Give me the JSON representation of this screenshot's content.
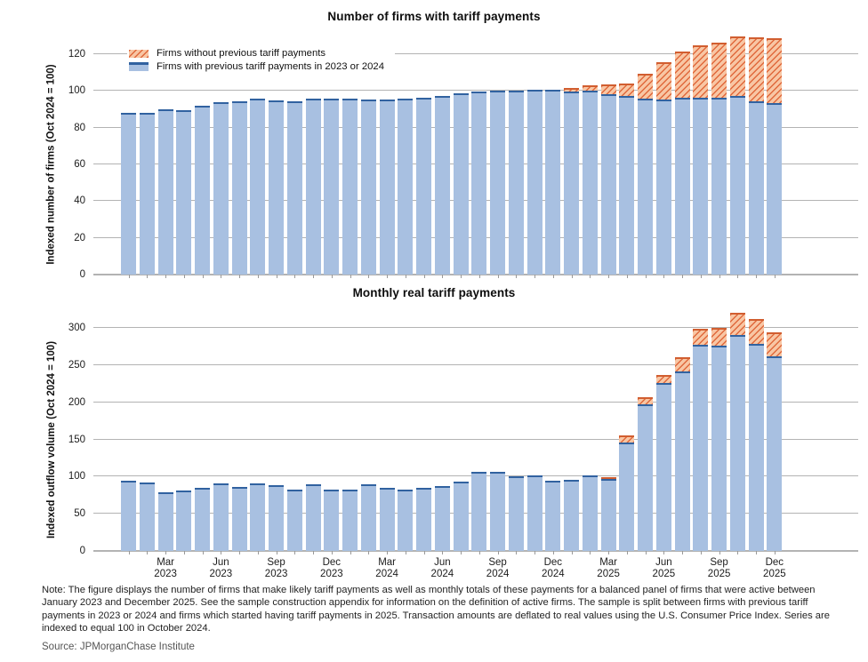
{
  "months": [
    "Jan 2023",
    "Feb 2023",
    "Mar 2023",
    "Apr 2023",
    "May 2023",
    "Jun 2023",
    "Jul 2023",
    "Aug 2023",
    "Sep 2023",
    "Oct 2023",
    "Nov 2023",
    "Dec 2023",
    "Jan 2024",
    "Feb 2024",
    "Mar 2024",
    "Apr 2024",
    "May 2024",
    "Jun 2024",
    "Jul 2024",
    "Aug 2024",
    "Sep 2024",
    "Oct 2024",
    "Nov 2024",
    "Dec 2024",
    "Jan 2025",
    "Feb 2025",
    "Mar 2025",
    "Apr 2025",
    "May 2025",
    "Jun 2025",
    "Jul 2025",
    "Aug 2025",
    "Sep 2025",
    "Oct 2025",
    "Nov 2025",
    "Dec 2025"
  ],
  "x_axis_ticks": [
    {
      "index": 2,
      "month": "Mar",
      "year": "2023"
    },
    {
      "index": 5,
      "month": "Jun",
      "year": "2023"
    },
    {
      "index": 8,
      "month": "Sep",
      "year": "2023"
    },
    {
      "index": 11,
      "month": "Dec",
      "year": "2023"
    },
    {
      "index": 14,
      "month": "Mar",
      "year": "2024"
    },
    {
      "index": 17,
      "month": "Jun",
      "year": "2024"
    },
    {
      "index": 20,
      "month": "Sep",
      "year": "2024"
    },
    {
      "index": 23,
      "month": "Dec",
      "year": "2024"
    },
    {
      "index": 26,
      "month": "Mar",
      "year": "2025"
    },
    {
      "index": 29,
      "month": "Jun",
      "year": "2025"
    },
    {
      "index": 32,
      "month": "Sep",
      "year": "2025"
    },
    {
      "index": 35,
      "month": "Dec",
      "year": "2025"
    }
  ],
  "chart_data": [
    {
      "type": "bar",
      "stacked": true,
      "title": "Number of firms with tariff payments",
      "ylabel": "Indexed number of firms (Oct 2024 = 100)",
      "ylim": [
        0,
        120
      ],
      "yticks": [
        0,
        20,
        40,
        60,
        80,
        100,
        120
      ],
      "grid": true,
      "legend_position": "top-left",
      "show_x_labels": false,
      "series": [
        {
          "name": "Firms with previous tariff payments in 2023 or 2024",
          "values": [
            88,
            88,
            90,
            89.5,
            92,
            94,
            94.5,
            96,
            95,
            94.5,
            96,
            96,
            96,
            95.5,
            95.5,
            96,
            96.5,
            97.5,
            98.5,
            99.5,
            100,
            100,
            100.5,
            100.5,
            99.5,
            100,
            98,
            97.5,
            96,
            95.5,
            96.5,
            96.5,
            96.5,
            97.5,
            94.5,
            93.5
          ]
        },
        {
          "name": "Firms without previous tariff payments",
          "values": [
            0,
            0,
            0,
            0,
            0,
            0,
            0,
            0,
            0,
            0,
            0,
            0,
            0,
            0,
            0,
            0,
            0,
            0,
            0,
            0,
            0,
            0,
            0,
            0,
            2,
            3,
            5.5,
            6.5,
            13.5,
            20,
            25,
            28.5,
            30,
            32,
            34.5,
            35
          ]
        }
      ]
    },
    {
      "type": "bar",
      "stacked": true,
      "title": "Monthly real tariff payments",
      "ylabel": "Indexed outflow volume (Oct 2024 = 100)",
      "ylim": [
        0,
        300
      ],
      "yticks": [
        0,
        50,
        100,
        150,
        200,
        250,
        300
      ],
      "grid": true,
      "show_x_labels": true,
      "series": [
        {
          "name": "Firms with previous tariff payments in 2023 or 2024",
          "values": [
            94,
            92,
            79,
            81,
            85,
            91,
            86,
            91,
            89,
            83,
            90,
            82,
            82,
            90,
            85,
            82,
            85,
            87,
            93,
            106,
            106,
            100,
            102,
            94,
            96,
            102,
            96.5,
            146,
            197,
            226,
            242,
            277,
            276,
            291,
            278,
            262
          ]
        },
        {
          "name": "Firms without previous tariff payments",
          "values": [
            0,
            0,
            0,
            0,
            0,
            0,
            0,
            0,
            0,
            0,
            0,
            0,
            0,
            0,
            0,
            0,
            0,
            0,
            0,
            0,
            0,
            0,
            0,
            0,
            0,
            0,
            1.5,
            10,
            10,
            11,
            19,
            22,
            24,
            29,
            34,
            32
          ]
        }
      ]
    }
  ],
  "note": "Note: The figure displays the number of firms that make likely tariff payments as well as monthly totals of these payments for a balanced panel of firms that were active between January 2023 and December 2025. See the sample construction appendix for information on the definition of active firms. The sample is split between firms with previous tariff payments in 2023 or 2024 and firms which started having tariff payments in 2025. Transaction amounts are deflated to real values using the U.S. Consumer Price Index. Series are indexed to equal 100 in October 2024.",
  "source": "Source: JPMorganChase Institute",
  "colors": {
    "with_previous_fill": "#a8c0e1",
    "with_previous_cap": "#3162a0",
    "without_previous_fill": "#f8c6a4",
    "without_previous_hatch_line": "#e0693c",
    "without_previous_border": "#d15e30",
    "gridline": "#b3b3b3",
    "tick": "#999999",
    "source_text": "#555555"
  }
}
